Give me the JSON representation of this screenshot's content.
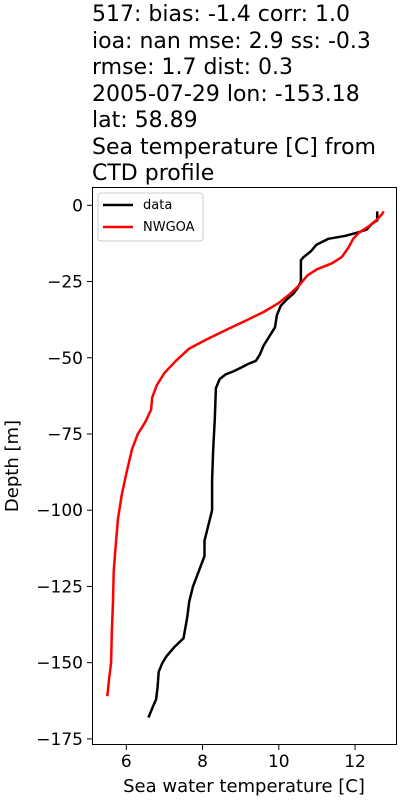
{
  "chart_data": {
    "type": "line",
    "title_lines": [
      "517: bias: -1.4  corr: 1.0",
      "ioa: nan  mse: 2.9  ss: -0.3",
      "rmse: 1.7  dist: 0.3",
      "2005-07-29 lon: -153.18",
      "lat: 58.89",
      "Sea temperature [C] from",
      "CTD profile"
    ],
    "xlabel": "Sea water temperature [C]",
    "ylabel": "Depth [m]",
    "xlim": [
      5.1,
      13.1
    ],
    "ylim": [
      -177,
      6
    ],
    "xticks": [
      6,
      8,
      10,
      12
    ],
    "yticks": [
      0,
      -25,
      -50,
      -75,
      -100,
      -125,
      -150,
      -175
    ],
    "xtick_labels": [
      "6",
      "8",
      "10",
      "12"
    ],
    "ytick_labels": [
      "0",
      "−25",
      "−50",
      "−75",
      "−100",
      "−125",
      "−150",
      "−175"
    ],
    "legend_position": "upper-left",
    "series": [
      {
        "name": "data",
        "color": "#000000",
        "points": [
          [
            12.58,
            -2
          ],
          [
            12.58,
            -5
          ],
          [
            12.45,
            -6
          ],
          [
            12.3,
            -8
          ],
          [
            12.05,
            -9
          ],
          [
            11.75,
            -10
          ],
          [
            11.3,
            -11
          ],
          [
            10.98,
            -13
          ],
          [
            10.85,
            -15
          ],
          [
            10.65,
            -17
          ],
          [
            10.58,
            -18
          ],
          [
            10.58,
            -20
          ],
          [
            10.58,
            -25
          ],
          [
            10.5,
            -27
          ],
          [
            10.38,
            -29
          ],
          [
            10.2,
            -31
          ],
          [
            10.05,
            -33
          ],
          [
            9.95,
            -36
          ],
          [
            9.9,
            -40
          ],
          [
            9.75,
            -43
          ],
          [
            9.6,
            -46
          ],
          [
            9.5,
            -49
          ],
          [
            9.4,
            -51
          ],
          [
            9.2,
            -52
          ],
          [
            9.05,
            -53
          ],
          [
            8.8,
            -54.5
          ],
          [
            8.6,
            -55.5
          ],
          [
            8.45,
            -57
          ],
          [
            8.35,
            -60
          ],
          [
            8.32,
            -70
          ],
          [
            8.28,
            -80
          ],
          [
            8.25,
            -90
          ],
          [
            8.25,
            -100
          ],
          [
            8.15,
            -105
          ],
          [
            8.05,
            -110
          ],
          [
            8.05,
            -115
          ],
          [
            7.9,
            -120
          ],
          [
            7.75,
            -125
          ],
          [
            7.65,
            -130
          ],
          [
            7.6,
            -135
          ],
          [
            7.5,
            -142
          ],
          [
            7.25,
            -145
          ],
          [
            7.05,
            -148
          ],
          [
            6.95,
            -150
          ],
          [
            6.85,
            -153
          ],
          [
            6.82,
            -158
          ],
          [
            6.78,
            -162
          ],
          [
            6.68,
            -165
          ],
          [
            6.58,
            -168
          ]
        ]
      },
      {
        "name": "NWGOA",
        "color": "#ff0000",
        "points": [
          [
            12.75,
            -2
          ],
          [
            12.7,
            -3
          ],
          [
            12.55,
            -5
          ],
          [
            12.35,
            -7
          ],
          [
            12.1,
            -9
          ],
          [
            11.95,
            -11
          ],
          [
            11.82,
            -14
          ],
          [
            11.65,
            -17
          ],
          [
            11.4,
            -19
          ],
          [
            11.0,
            -21
          ],
          [
            10.75,
            -23
          ],
          [
            10.55,
            -26
          ],
          [
            10.3,
            -29
          ],
          [
            10.0,
            -32
          ],
          [
            9.6,
            -35
          ],
          [
            9.1,
            -38
          ],
          [
            8.6,
            -41
          ],
          [
            8.1,
            -44
          ],
          [
            7.65,
            -47
          ],
          [
            7.3,
            -51
          ],
          [
            7.0,
            -55
          ],
          [
            6.8,
            -59
          ],
          [
            6.68,
            -63
          ],
          [
            6.65,
            -67
          ],
          [
            6.5,
            -71
          ],
          [
            6.3,
            -75
          ],
          [
            6.15,
            -80
          ],
          [
            6.0,
            -88
          ],
          [
            5.88,
            -95
          ],
          [
            5.78,
            -103
          ],
          [
            5.72,
            -112
          ],
          [
            5.67,
            -120
          ],
          [
            5.65,
            -130
          ],
          [
            5.62,
            -140
          ],
          [
            5.6,
            -150
          ],
          [
            5.55,
            -155
          ],
          [
            5.5,
            -161
          ]
        ]
      }
    ]
  }
}
